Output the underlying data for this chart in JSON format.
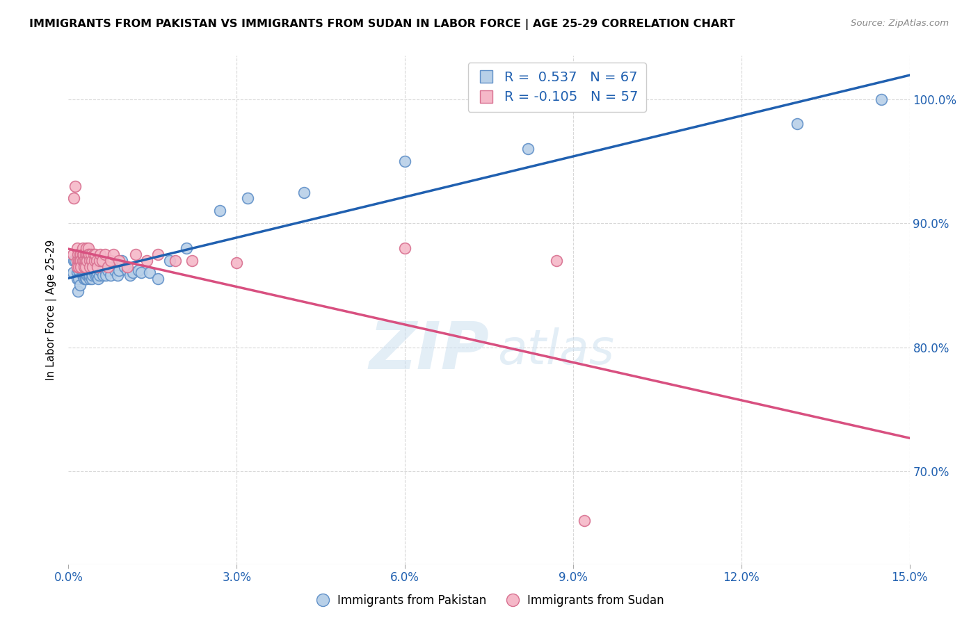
{
  "title": "IMMIGRANTS FROM PAKISTAN VS IMMIGRANTS FROM SUDAN IN LABOR FORCE | AGE 25-29 CORRELATION CHART",
  "source": "Source: ZipAtlas.com",
  "ylabel": "In Labor Force | Age 25-29",
  "yaxis_labels": [
    "70.0%",
    "80.0%",
    "90.0%",
    "100.0%"
  ],
  "yaxis_values": [
    0.7,
    0.8,
    0.9,
    1.0
  ],
  "xmin": 0.0,
  "xmax": 0.15,
  "ymin": 0.625,
  "ymax": 1.035,
  "pakistan_color": "#b8d0e8",
  "sudan_color": "#f5b8c8",
  "pakistan_line_color": "#2060b0",
  "sudan_line_color": "#d85080",
  "pakistan_edge_color": "#6090c8",
  "sudan_edge_color": "#d87090",
  "watermark_zip": "ZIP",
  "watermark_atlas": "atlas",
  "pakistan_x": [
    0.0008,
    0.001,
    0.0012,
    0.0015,
    0.0015,
    0.0017,
    0.0018,
    0.0018,
    0.002,
    0.0022,
    0.0022,
    0.0025,
    0.0025,
    0.0027,
    0.0027,
    0.0028,
    0.0028,
    0.003,
    0.003,
    0.003,
    0.0032,
    0.0032,
    0.0033,
    0.0035,
    0.0035,
    0.0037,
    0.0038,
    0.0038,
    0.004,
    0.0042,
    0.0043,
    0.0045,
    0.0047,
    0.0048,
    0.005,
    0.0052,
    0.0053,
    0.0055,
    0.0057,
    0.006,
    0.0062,
    0.0065,
    0.0067,
    0.007,
    0.0075,
    0.008,
    0.0083,
    0.0087,
    0.009,
    0.0095,
    0.01,
    0.0105,
    0.011,
    0.0115,
    0.0125,
    0.013,
    0.0145,
    0.016,
    0.018,
    0.021,
    0.027,
    0.032,
    0.042,
    0.06,
    0.082,
    0.13,
    0.145
  ],
  "pakistan_y": [
    0.86,
    0.87,
    0.87,
    0.86,
    0.855,
    0.845,
    0.862,
    0.855,
    0.85,
    0.87,
    0.865,
    0.862,
    0.858,
    0.865,
    0.858,
    0.862,
    0.855,
    0.862,
    0.858,
    0.855,
    0.86,
    0.855,
    0.858,
    0.862,
    0.858,
    0.86,
    0.855,
    0.858,
    0.86,
    0.855,
    0.858,
    0.862,
    0.86,
    0.858,
    0.858,
    0.86,
    0.855,
    0.858,
    0.862,
    0.87,
    0.858,
    0.862,
    0.858,
    0.862,
    0.858,
    0.865,
    0.862,
    0.858,
    0.862,
    0.87,
    0.865,
    0.862,
    0.858,
    0.86,
    0.862,
    0.86,
    0.86,
    0.855,
    0.87,
    0.88,
    0.91,
    0.92,
    0.925,
    0.95,
    0.96,
    0.98,
    1.0
  ],
  "sudan_x": [
    0.0008,
    0.001,
    0.0012,
    0.0015,
    0.0015,
    0.0015,
    0.0017,
    0.0018,
    0.0018,
    0.002,
    0.002,
    0.0022,
    0.0022,
    0.0022,
    0.0025,
    0.0025,
    0.0025,
    0.0027,
    0.0028,
    0.0028,
    0.003,
    0.003,
    0.003,
    0.0032,
    0.0033,
    0.0033,
    0.0035,
    0.0035,
    0.0037,
    0.0038,
    0.0038,
    0.004,
    0.0042,
    0.0043,
    0.0045,
    0.0047,
    0.0048,
    0.005,
    0.0052,
    0.0055,
    0.0057,
    0.006,
    0.0065,
    0.007,
    0.0075,
    0.008,
    0.009,
    0.0105,
    0.012,
    0.014,
    0.016,
    0.019,
    0.022,
    0.03,
    0.06,
    0.087,
    0.092
  ],
  "sudan_y": [
    0.875,
    0.92,
    0.93,
    0.88,
    0.87,
    0.865,
    0.875,
    0.87,
    0.865,
    0.875,
    0.87,
    0.875,
    0.87,
    0.865,
    0.88,
    0.875,
    0.87,
    0.875,
    0.87,
    0.865,
    0.875,
    0.87,
    0.865,
    0.88,
    0.875,
    0.87,
    0.88,
    0.875,
    0.875,
    0.87,
    0.865,
    0.875,
    0.87,
    0.865,
    0.875,
    0.87,
    0.875,
    0.87,
    0.865,
    0.87,
    0.875,
    0.87,
    0.875,
    0.865,
    0.87,
    0.875,
    0.87,
    0.865,
    0.875,
    0.87,
    0.875,
    0.87,
    0.87,
    0.868,
    0.88,
    0.87,
    0.66
  ]
}
